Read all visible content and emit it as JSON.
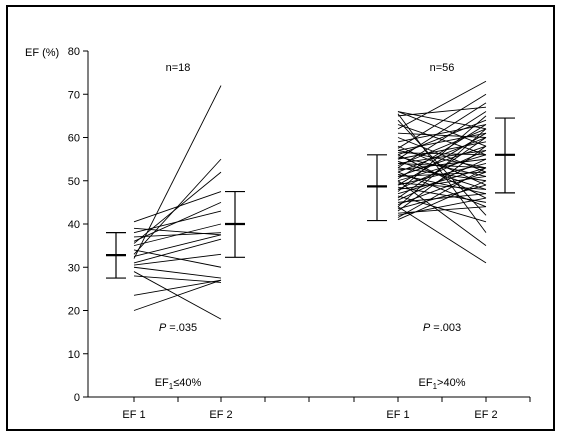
{
  "chart_data": {
    "type": "line",
    "ylabel": "EF (%)",
    "ylim": [
      0,
      80
    ],
    "yticks": [
      0,
      10,
      20,
      30,
      40,
      50,
      60,
      70,
      80
    ],
    "grid": false,
    "groups": [
      {
        "n_label": "n=18",
        "p_label_italic": "P",
        "p_label_rest": " =.035",
        "group_label_main": "EF",
        "group_label_sub": "1",
        "group_label_rest": "≤40%",
        "x_labels": [
          "EF 1",
          "EF 2"
        ],
        "mean_sd": [
          {
            "mean": 32.8,
            "low": 27.5,
            "high": 38.0
          },
          {
            "mean": 40.0,
            "low": 32.3,
            "high": 47.5
          }
        ],
        "pairs": [
          [
            20.0,
            27.0
          ],
          [
            23.5,
            27.0
          ],
          [
            28.0,
            26.5
          ],
          [
            29.0,
            18.0
          ],
          [
            30.0,
            27.5
          ],
          [
            30.5,
            33.0
          ],
          [
            31.0,
            36.5
          ],
          [
            32.0,
            72.0
          ],
          [
            32.5,
            37.5
          ],
          [
            33.0,
            55.0
          ],
          [
            34.0,
            30.0
          ],
          [
            35.0,
            40.0
          ],
          [
            35.5,
            52.0
          ],
          [
            36.0,
            45.0
          ],
          [
            37.0,
            38.0
          ],
          [
            38.0,
            43.0
          ],
          [
            39.0,
            37.5
          ],
          [
            40.5,
            47.5
          ]
        ]
      },
      {
        "n_label": "n=56",
        "p_label_italic": "P",
        "p_label_rest": " =.003",
        "group_label_main": "EF",
        "group_label_sub": "1",
        "group_label_rest": ">40%",
        "x_labels": [
          "EF 1",
          "EF 2"
        ],
        "mean_sd": [
          {
            "mean": 48.7,
            "low": 40.8,
            "high": 56.0
          },
          {
            "mean": 56.0,
            "low": 47.2,
            "high": 64.5
          }
        ],
        "pairs": [
          [
            41.0,
            50.0
          ],
          [
            41.5,
            53.0
          ],
          [
            42.0,
            46.0
          ],
          [
            42.5,
            44.0
          ],
          [
            43.0,
            58.0
          ],
          [
            43.5,
            49.0
          ],
          [
            44.0,
            31.0
          ],
          [
            44.0,
            62.0
          ],
          [
            44.5,
            52.0
          ],
          [
            45.0,
            47.0
          ],
          [
            45.5,
            55.0
          ],
          [
            46.0,
            60.0
          ],
          [
            46.5,
            40.5
          ],
          [
            47.0,
            53.0
          ],
          [
            47.5,
            65.0
          ],
          [
            48.0,
            51.0
          ],
          [
            48.0,
            57.0
          ],
          [
            48.5,
            45.0
          ],
          [
            49.0,
            54.0
          ],
          [
            49.0,
            61.0
          ],
          [
            49.5,
            48.0
          ],
          [
            50.0,
            56.0
          ],
          [
            50.0,
            35.0
          ],
          [
            50.5,
            63.0
          ],
          [
            51.0,
            52.0
          ],
          [
            51.0,
            58.0
          ],
          [
            51.5,
            47.0
          ],
          [
            52.0,
            60.0
          ],
          [
            52.0,
            44.0
          ],
          [
            52.5,
            55.0
          ],
          [
            53.0,
            66.0
          ],
          [
            53.0,
            50.0
          ],
          [
            53.5,
            62.0
          ],
          [
            54.0,
            53.0
          ],
          [
            54.0,
            57.0
          ],
          [
            54.5,
            48.0
          ],
          [
            55.0,
            68.0
          ],
          [
            55.0,
            59.0
          ],
          [
            55.5,
            51.0
          ],
          [
            56.0,
            64.0
          ],
          [
            56.0,
            46.0
          ],
          [
            56.5,
            56.0
          ],
          [
            57.0,
            61.0
          ],
          [
            57.0,
            53.0
          ],
          [
            57.5,
            70.0
          ],
          [
            58.0,
            49.0
          ],
          [
            59.0,
            63.0
          ],
          [
            60.0,
            52.0
          ],
          [
            61.0,
            60.0
          ],
          [
            62.0,
            73.0
          ],
          [
            63.0,
            56.0
          ],
          [
            64.0,
            42.0
          ],
          [
            65.0,
            67.0
          ],
          [
            65.5,
            38.0
          ],
          [
            66.0,
            58.0
          ],
          [
            66.0,
            62.0
          ]
        ]
      }
    ]
  }
}
